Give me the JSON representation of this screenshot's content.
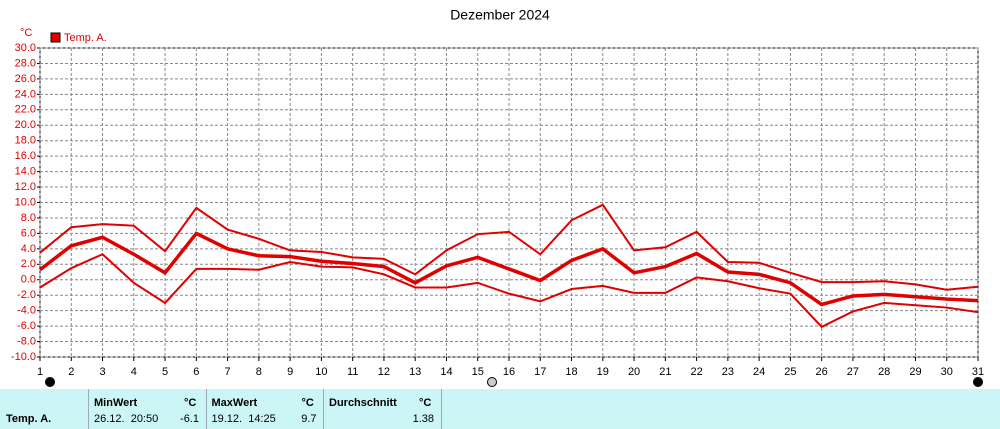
{
  "chart_data": {
    "type": "line",
    "title": "Dezember 2024",
    "unit_label": "°C",
    "legend_label": "Temp. A.",
    "legend_color": "#e00000",
    "x": [
      1,
      2,
      3,
      4,
      5,
      6,
      7,
      8,
      9,
      10,
      11,
      12,
      13,
      14,
      15,
      16,
      17,
      18,
      19,
      20,
      21,
      22,
      23,
      24,
      25,
      26,
      27,
      28,
      29,
      30,
      31
    ],
    "series": [
      {
        "color": "#e00000",
        "width": 2,
        "values": [
          3.5,
          6.8,
          7.2,
          7.0,
          3.7,
          9.3,
          6.5,
          5.3,
          3.8,
          3.6,
          2.9,
          2.7,
          0.7,
          3.8,
          5.9,
          6.2,
          3.3,
          7.7,
          9.7,
          3.8,
          4.2,
          6.2,
          2.3,
          2.2,
          0.9,
          -0.3,
          -0.3,
          -0.2,
          -0.6,
          -1.3,
          -0.9
        ]
      },
      {
        "color": "#e00000",
        "width": 3.5,
        "values": [
          1.3,
          4.4,
          5.5,
          3.3,
          0.9,
          6.0,
          4.0,
          3.1,
          3.0,
          2.4,
          2.1,
          1.7,
          -0.4,
          1.8,
          2.9,
          1.4,
          -0.1,
          2.5,
          4.0,
          0.9,
          1.7,
          3.4,
          1.0,
          0.7,
          -0.4,
          -3.2,
          -2.1,
          -1.9,
          -2.2,
          -2.5,
          -2.7
        ]
      },
      {
        "color": "#e00000",
        "width": 2,
        "values": [
          -1.0,
          1.5,
          3.3,
          -0.4,
          -3.0,
          1.4,
          1.4,
          1.3,
          2.3,
          1.7,
          1.6,
          0.7,
          -1.0,
          -1.0,
          -0.4,
          -1.8,
          -2.8,
          -1.2,
          -0.8,
          -1.7,
          -1.7,
          0.3,
          -0.2,
          -1.1,
          -1.8,
          -6.1,
          -4.1,
          -3.0,
          -3.3,
          -3.6,
          -4.2
        ]
      }
    ],
    "xlim": [
      1,
      31
    ],
    "xticks": [
      1,
      2,
      3,
      4,
      5,
      6,
      7,
      8,
      9,
      10,
      11,
      12,
      13,
      14,
      15,
      16,
      17,
      18,
      19,
      20,
      21,
      22,
      23,
      24,
      25,
      26,
      27,
      28,
      29,
      30,
      31
    ],
    "ylim": [
      -10,
      30
    ],
    "yticks": [
      {
        "value": 30,
        "label": "30.0"
      },
      {
        "value": 28,
        "label": "28.0"
      },
      {
        "value": 26,
        "label": "26.0"
      },
      {
        "value": 24,
        "label": "24.0"
      },
      {
        "value": 22,
        "label": "22.0"
      },
      {
        "value": 20,
        "label": "20.0"
      },
      {
        "value": 18,
        "label": "18.0"
      },
      {
        "value": 16,
        "label": "16.0"
      },
      {
        "value": 14,
        "label": "14.0"
      },
      {
        "value": 12,
        "label": "12.0"
      },
      {
        "value": 10,
        "label": "10.0"
      },
      {
        "value": 8,
        "label": "8.0"
      },
      {
        "value": 6,
        "label": "6.0"
      },
      {
        "value": 4,
        "label": "4.0"
      },
      {
        "value": 2,
        "label": "2.0"
      },
      {
        "value": 0,
        "label": "0.0"
      },
      {
        "value": -2,
        "label": "-2.0"
      },
      {
        "value": -4,
        "label": "-4.0"
      },
      {
        "value": -6,
        "label": "-6.0"
      },
      {
        "value": -8,
        "label": "-8.0"
      },
      {
        "value": -10,
        "label": "-10.0"
      }
    ],
    "grid": true
  },
  "footer": {
    "row_label": "Temp. A.",
    "columns": [
      {
        "header": "MinWert",
        "unit": "°C",
        "date": "26.12.  20:50",
        "value": -6.1
      },
      {
        "header": "MaxWert",
        "unit": "°C",
        "date": "19.12.  14:25",
        "value": 9.7
      },
      {
        "header": "Durchschnitt",
        "unit": "°C",
        "value": 1.38
      }
    ]
  }
}
